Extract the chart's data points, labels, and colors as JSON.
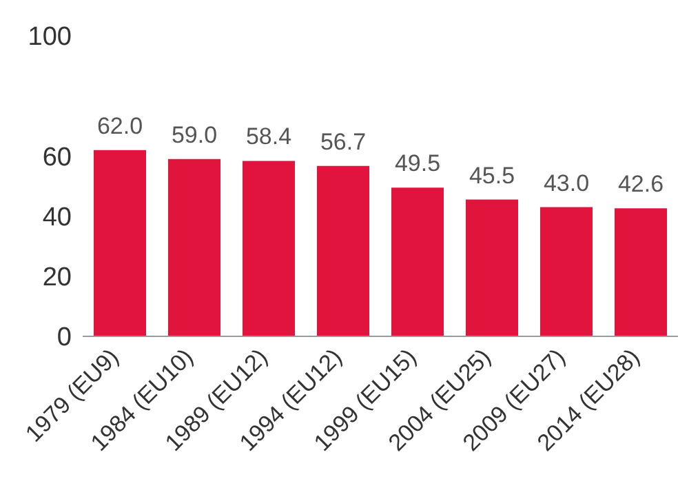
{
  "chart_data": {
    "type": "bar",
    "categories": [
      "1979 (EU9)",
      "1984 (EU10)",
      "1989 (EU12)",
      "1994 (EU12)",
      "1999 (EU15)",
      "2004 (EU25)",
      "2009 (EU27)",
      "2014 (EU28)"
    ],
    "values": [
      62.0,
      59.0,
      58.4,
      56.7,
      49.5,
      45.5,
      43.0,
      42.6
    ],
    "value_labels": [
      "62.0",
      "59.0",
      "58.4",
      "56.7",
      "49.5",
      "45.5",
      "43.0",
      "42.6"
    ],
    "color": "#e0143c",
    "ylim": [
      0,
      100
    ],
    "yticks": [
      0,
      20,
      40,
      60,
      100
    ],
    "grid": false,
    "legend": false
  }
}
